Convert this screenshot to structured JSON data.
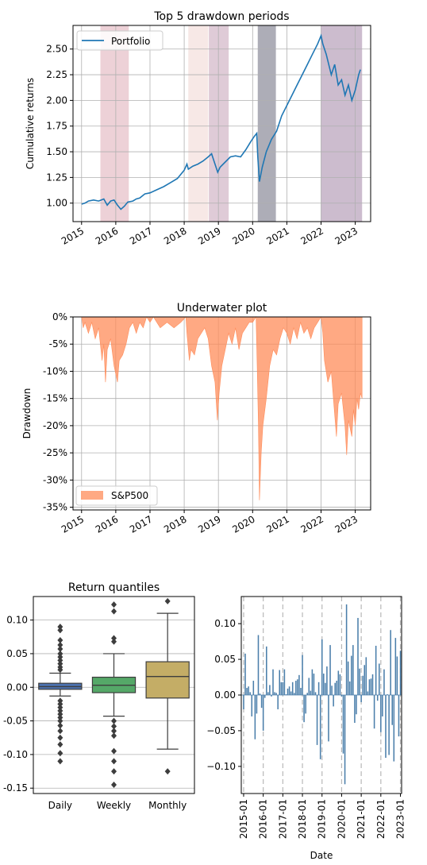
{
  "chart_data": [
    {
      "type": "line",
      "title": "Top 5 drawdown periods",
      "ylabel": "Cumulative returns",
      "xlabel": "",
      "xlim": [
        2014.75,
        2023.45
      ],
      "ylim": [
        0.82,
        2.73
      ],
      "xticks": [
        2015,
        2016,
        2017,
        2018,
        2019,
        2020,
        2021,
        2022,
        2023
      ],
      "xtick_labels": [
        "2015",
        "2016",
        "2017",
        "2018",
        "2019",
        "2020",
        "2021",
        "2022",
        "2023"
      ],
      "yticks": [
        1.0,
        1.25,
        1.5,
        1.75,
        2.0,
        2.25,
        2.5
      ],
      "ytick_labels": [
        "1.00",
        "1.25",
        "1.50",
        "1.75",
        "2.00",
        "2.25",
        "2.50"
      ],
      "grid": true,
      "legend_position": "top-left",
      "series": [
        {
          "name": "Portfolio",
          "color": "#1f77b4",
          "points": [
            [
              2015.0,
              0.99
            ],
            [
              2015.1,
              1.0
            ],
            [
              2015.2,
              1.02
            ],
            [
              2015.35,
              1.03
            ],
            [
              2015.5,
              1.02
            ],
            [
              2015.65,
              1.04
            ],
            [
              2015.75,
              0.98
            ],
            [
              2015.85,
              1.02
            ],
            [
              2015.95,
              1.03
            ],
            [
              2016.05,
              0.98
            ],
            [
              2016.15,
              0.94
            ],
            [
              2016.25,
              0.97
            ],
            [
              2016.35,
              1.01
            ],
            [
              2016.5,
              1.02
            ],
            [
              2016.6,
              1.04
            ],
            [
              2016.7,
              1.05
            ],
            [
              2016.85,
              1.09
            ],
            [
              2017.0,
              1.1
            ],
            [
              2017.2,
              1.13
            ],
            [
              2017.4,
              1.16
            ],
            [
              2017.6,
              1.2
            ],
            [
              2017.8,
              1.24
            ],
            [
              2018.0,
              1.32
            ],
            [
              2018.08,
              1.38
            ],
            [
              2018.12,
              1.33
            ],
            [
              2018.25,
              1.36
            ],
            [
              2018.4,
              1.38
            ],
            [
              2018.55,
              1.41
            ],
            [
              2018.7,
              1.45
            ],
            [
              2018.8,
              1.48
            ],
            [
              2018.9,
              1.38
            ],
            [
              2018.98,
              1.3
            ],
            [
              2019.05,
              1.35
            ],
            [
              2019.2,
              1.4
            ],
            [
              2019.35,
              1.45
            ],
            [
              2019.5,
              1.46
            ],
            [
              2019.65,
              1.45
            ],
            [
              2019.8,
              1.52
            ],
            [
              2019.95,
              1.6
            ],
            [
              2020.05,
              1.65
            ],
            [
              2020.12,
              1.68
            ],
            [
              2020.15,
              1.45
            ],
            [
              2020.2,
              1.21
            ],
            [
              2020.28,
              1.35
            ],
            [
              2020.4,
              1.5
            ],
            [
              2020.55,
              1.62
            ],
            [
              2020.7,
              1.7
            ],
            [
              2020.85,
              1.85
            ],
            [
              2021.0,
              1.95
            ],
            [
              2021.15,
              2.05
            ],
            [
              2021.3,
              2.15
            ],
            [
              2021.45,
              2.25
            ],
            [
              2021.6,
              2.35
            ],
            [
              2021.75,
              2.45
            ],
            [
              2021.9,
              2.55
            ],
            [
              2022.0,
              2.63
            ],
            [
              2022.05,
              2.55
            ],
            [
              2022.15,
              2.45
            ],
            [
              2022.3,
              2.25
            ],
            [
              2022.4,
              2.35
            ],
            [
              2022.5,
              2.15
            ],
            [
              2022.6,
              2.2
            ],
            [
              2022.7,
              2.05
            ],
            [
              2022.8,
              2.15
            ],
            [
              2022.9,
              2.0
            ],
            [
              2023.0,
              2.1
            ],
            [
              2023.1,
              2.25
            ],
            [
              2023.15,
              2.3
            ]
          ]
        }
      ],
      "shaded_periods": [
        {
          "start": 2015.55,
          "end": 2016.38,
          "color": "#d69aa7"
        },
        {
          "start": 2018.12,
          "end": 2018.7,
          "color": "#eecbc8"
        },
        {
          "start": 2018.72,
          "end": 2019.3,
          "color": "#b98ba6"
        },
        {
          "start": 2020.15,
          "end": 2020.68,
          "color": "#4a4a60"
        },
        {
          "start": 2022.0,
          "end": 2023.2,
          "color": "#8e6a93"
        }
      ]
    },
    {
      "type": "area",
      "title": "Underwater plot",
      "ylabel": "Drawdown",
      "xlabel": "",
      "xlim": [
        2014.75,
        2023.45
      ],
      "ylim": [
        -35.5,
        0
      ],
      "xticks": [
        2015,
        2016,
        2017,
        2018,
        2019,
        2020,
        2021,
        2022,
        2023
      ],
      "xtick_labels": [
        "2015",
        "2016",
        "2017",
        "2018",
        "2019",
        "2020",
        "2021",
        "2022",
        "2023"
      ],
      "yticks": [
        0,
        -5,
        -10,
        -15,
        -20,
        -25,
        -30,
        -35
      ],
      "ytick_labels": [
        "0%",
        "-5%",
        "-10%",
        "-15%",
        "-20%",
        "-25%",
        "-30%",
        "-35%"
      ],
      "grid": true,
      "legend_position": "bottom-left",
      "series": [
        {
          "name": "S&P500",
          "color": "#ff8c5a",
          "points": [
            [
              2015.0,
              0
            ],
            [
              2015.05,
              -2
            ],
            [
              2015.1,
              -1
            ],
            [
              2015.2,
              -3
            ],
            [
              2015.3,
              -1
            ],
            [
              2015.4,
              -4
            ],
            [
              2015.5,
              -2
            ],
            [
              2015.6,
              -8
            ],
            [
              2015.65,
              -5
            ],
            [
              2015.7,
              -12
            ],
            [
              2015.75,
              -6
            ],
            [
              2015.85,
              -4
            ],
            [
              2015.95,
              -9
            ],
            [
              2016.05,
              -12
            ],
            [
              2016.1,
              -8
            ],
            [
              2016.2,
              -7
            ],
            [
              2016.3,
              -5
            ],
            [
              2016.4,
              -2
            ],
            [
              2016.5,
              -1
            ],
            [
              2016.6,
              -3
            ],
            [
              2016.7,
              -1
            ],
            [
              2016.8,
              -2
            ],
            [
              2016.9,
              0
            ],
            [
              2017.0,
              -1
            ],
            [
              2017.1,
              0
            ],
            [
              2017.3,
              -2
            ],
            [
              2017.5,
              -1
            ],
            [
              2017.7,
              -2
            ],
            [
              2017.9,
              -1
            ],
            [
              2018.05,
              0
            ],
            [
              2018.08,
              -3
            ],
            [
              2018.15,
              -8
            ],
            [
              2018.2,
              -6
            ],
            [
              2018.3,
              -7
            ],
            [
              2018.4,
              -4
            ],
            [
              2018.5,
              -3
            ],
            [
              2018.6,
              -2
            ],
            [
              2018.7,
              -4
            ],
            [
              2018.8,
              -9
            ],
            [
              2018.9,
              -12
            ],
            [
              2018.97,
              -19
            ],
            [
              2019.02,
              -14
            ],
            [
              2019.1,
              -9
            ],
            [
              2019.2,
              -6
            ],
            [
              2019.3,
              -3
            ],
            [
              2019.4,
              -5
            ],
            [
              2019.5,
              -2
            ],
            [
              2019.6,
              -6
            ],
            [
              2019.7,
              -3
            ],
            [
              2019.8,
              -2
            ],
            [
              2019.9,
              -1
            ],
            [
              2020.0,
              -1
            ],
            [
              2020.1,
              0
            ],
            [
              2020.13,
              -8
            ],
            [
              2020.17,
              -20
            ],
            [
              2020.2,
              -33.7
            ],
            [
              2020.25,
              -25
            ],
            [
              2020.3,
              -20
            ],
            [
              2020.4,
              -15
            ],
            [
              2020.5,
              -9
            ],
            [
              2020.6,
              -6
            ],
            [
              2020.7,
              -7
            ],
            [
              2020.8,
              -4
            ],
            [
              2020.9,
              -2
            ],
            [
              2021.0,
              -3
            ],
            [
              2021.1,
              -5
            ],
            [
              2021.2,
              -2
            ],
            [
              2021.3,
              -4
            ],
            [
              2021.4,
              -1
            ],
            [
              2021.5,
              -3
            ],
            [
              2021.6,
              -2
            ],
            [
              2021.7,
              -4
            ],
            [
              2021.8,
              -2
            ],
            [
              2021.9,
              -1
            ],
            [
              2022.0,
              0
            ],
            [
              2022.05,
              -3
            ],
            [
              2022.1,
              -8
            ],
            [
              2022.2,
              -12
            ],
            [
              2022.3,
              -10
            ],
            [
              2022.4,
              -18
            ],
            [
              2022.45,
              -22
            ],
            [
              2022.5,
              -16
            ],
            [
              2022.6,
              -14
            ],
            [
              2022.7,
              -20
            ],
            [
              2022.75,
              -25.4
            ],
            [
              2022.8,
              -19
            ],
            [
              2022.9,
              -22
            ],
            [
              2022.95,
              -17
            ],
            [
              2023.0,
              -20
            ],
            [
              2023.05,
              -15
            ],
            [
              2023.1,
              -17
            ],
            [
              2023.15,
              -14
            ],
            [
              2023.2,
              -15
            ]
          ]
        }
      ]
    },
    {
      "type": "box",
      "title": "Return quantiles",
      "ylabel": "",
      "xlabel": "",
      "ylim": [
        -0.158,
        0.135
      ],
      "yticks": [
        0.1,
        0.05,
        0.0,
        -0.05,
        -0.1,
        -0.15
      ],
      "ytick_labels": [
        "0.10",
        "0.05",
        "0.00",
        "-0.05",
        "-0.10",
        "-0.15"
      ],
      "grid": true,
      "categories": [
        "Daily",
        "Weekly",
        "Monthly"
      ],
      "boxes": [
        {
          "name": "Daily",
          "color": "#4c72b0",
          "whislo": -0.013,
          "q1": -0.003,
          "med": 0.001,
          "q3": 0.006,
          "whishi": 0.021,
          "fliers": [
            0.09,
            0.085,
            0.07,
            0.063,
            0.057,
            0.05,
            0.045,
            0.04,
            0.035,
            0.03,
            0.026,
            -0.02,
            -0.025,
            -0.03,
            -0.035,
            -0.04,
            -0.045,
            -0.05,
            -0.057,
            -0.065,
            -0.075,
            -0.085,
            -0.098,
            -0.11
          ]
        },
        {
          "name": "Weekly",
          "color": "#55a868",
          "whislo": -0.043,
          "q1": -0.008,
          "med": 0.003,
          "q3": 0.015,
          "whishi": 0.05,
          "fliers": [
            0.123,
            0.113,
            0.073,
            0.068,
            -0.05,
            -0.058,
            -0.065,
            -0.072,
            -0.095,
            -0.11,
            -0.125,
            -0.145
          ]
        },
        {
          "name": "Monthly",
          "color": "#c4ad66",
          "whislo": -0.092,
          "q1": -0.016,
          "med": 0.016,
          "q3": 0.038,
          "whishi": 0.11,
          "fliers": [
            0.128,
            -0.125
          ]
        }
      ]
    },
    {
      "type": "bar",
      "title": "",
      "ylabel": "",
      "xlabel": "Date",
      "xlim": [
        2014.88,
        2023.06
      ],
      "ylim": [
        -0.138,
        0.138
      ],
      "xticks": [
        2015,
        2016,
        2017,
        2018,
        2019,
        2020,
        2021,
        2022,
        2023
      ],
      "xtick_labels": [
        "2015-01",
        "2016-01",
        "2017-01",
        "2018-01",
        "2019-01",
        "2020-01",
        "2021-01",
        "2022-01",
        "2023-01"
      ],
      "yticks": [
        0.1,
        0.05,
        0.0,
        -0.05,
        -0.1
      ],
      "ytick_labels": [
        "0.10",
        "0.05",
        "0.00",
        "−0.05",
        "−0.10"
      ],
      "grid": "vertical-dashed",
      "color": "#4a7eaa",
      "x": [
        2015.0,
        2015.083,
        2015.167,
        2015.25,
        2015.333,
        2015.417,
        2015.5,
        2015.583,
        2015.667,
        2015.75,
        2015.833,
        2015.917,
        2016.0,
        2016.083,
        2016.167,
        2016.25,
        2016.333,
        2016.417,
        2016.5,
        2016.583,
        2016.667,
        2016.75,
        2016.833,
        2016.917,
        2017.0,
        2017.083,
        2017.167,
        2017.25,
        2017.333,
        2017.417,
        2017.5,
        2017.583,
        2017.667,
        2017.75,
        2017.833,
        2017.917,
        2018.0,
        2018.083,
        2018.167,
        2018.25,
        2018.333,
        2018.417,
        2018.5,
        2018.583,
        2018.667,
        2018.75,
        2018.833,
        2018.917,
        2019.0,
        2019.083,
        2019.167,
        2019.25,
        2019.333,
        2019.417,
        2019.5,
        2019.583,
        2019.667,
        2019.75,
        2019.833,
        2019.917,
        2020.0,
        2020.083,
        2020.167,
        2020.25,
        2020.333,
        2020.417,
        2020.5,
        2020.583,
        2020.667,
        2020.75,
        2020.833,
        2020.917,
        2021.0,
        2021.083,
        2021.167,
        2021.25,
        2021.333,
        2021.417,
        2021.5,
        2021.583,
        2021.667,
        2021.75,
        2021.833,
        2021.917,
        2022.0,
        2022.083,
        2022.167,
        2022.25,
        2022.333,
        2022.417,
        2022.5,
        2022.583,
        2022.667,
        2022.75,
        2022.833,
        2022.917,
        2023.0
      ],
      "values": [
        -0.02,
        0.058,
        0.01,
        0.012,
        0.004,
        -0.03,
        0.02,
        -0.062,
        -0.026,
        0.084,
        0.002,
        -0.018,
        -0.05,
        -0.004,
        0.068,
        0.004,
        0.014,
        -0.002,
        0.036,
        0.004,
        0.003,
        -0.02,
        0.035,
        0.018,
        0.018,
        0.036,
        0.001,
        0.009,
        0.012,
        0.005,
        0.018,
        0.003,
        0.02,
        0.022,
        0.028,
        0.01,
        0.056,
        -0.038,
        -0.026,
        0.003,
        0.024,
        0.006,
        0.036,
        0.03,
        0.004,
        -0.07,
        0.018,
        -0.09,
        0.078,
        0.03,
        0.017,
        0.04,
        -0.065,
        0.07,
        0.013,
        -0.016,
        0.017,
        0.02,
        0.034,
        0.029,
        -0.002,
        -0.082,
        -0.125,
        0.127,
        0.047,
        0.019,
        0.055,
        0.07,
        -0.039,
        -0.027,
        0.108,
        0.037,
        -0.01,
        0.027,
        0.042,
        0.053,
        0.005,
        0.022,
        0.023,
        0.029,
        -0.047,
        0.069,
        -0.008,
        0.044,
        -0.052,
        -0.03,
        0.036,
        -0.088,
        0.001,
        -0.084,
        0.091,
        -0.042,
        -0.093,
        0.08,
        0.054,
        -0.058,
        0.062
      ]
    }
  ]
}
